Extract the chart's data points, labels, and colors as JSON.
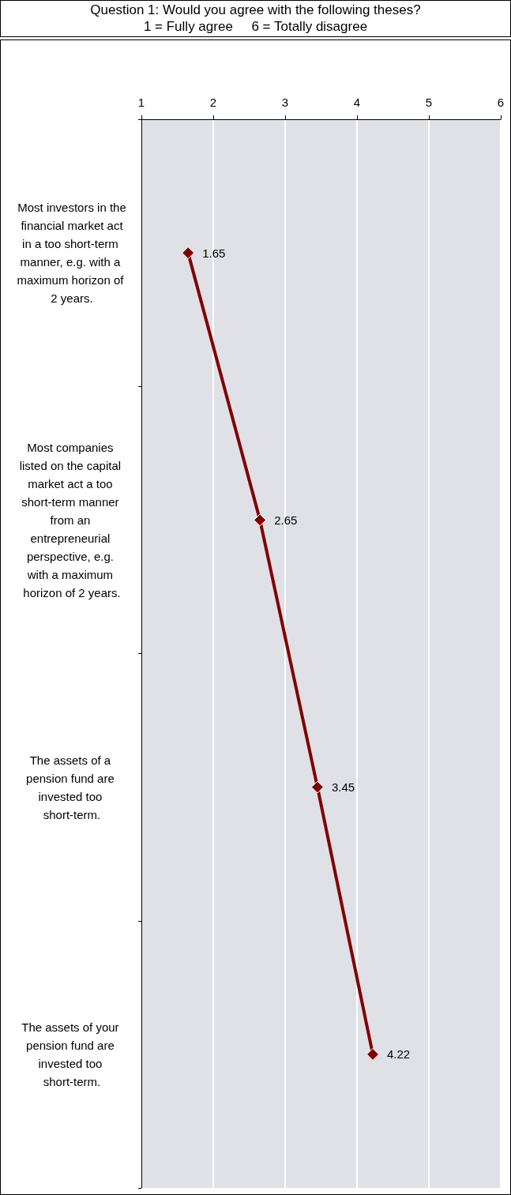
{
  "chart_data": {
    "type": "line",
    "orientation": "horizontal",
    "title": "Question 1: Would you agree with the following theses?",
    "subtitle": "1 = Fully agree     6 = Totally disagree",
    "categories": [
      "Most investors in the financial market act in a too short-term manner, e.g. with a maximum horizon of 2 years.",
      "Most companies listed on the capital market act a too short-term manner from an entrepreneurial perspective, e.g. with a maximum horizon of 2 years.",
      "The assets of a pension fund are invested too short-term.",
      "The assets of your pension fund are invested too short-term."
    ],
    "values": [
      1.65,
      2.65,
      3.45,
      4.22
    ],
    "color": "#800000",
    "xlim": [
      1,
      6
    ],
    "xticks": [
      1,
      2,
      3,
      4,
      5,
      6
    ],
    "grid": "x",
    "marker": "diamond",
    "line_style": "solid",
    "data_labels": true
  }
}
